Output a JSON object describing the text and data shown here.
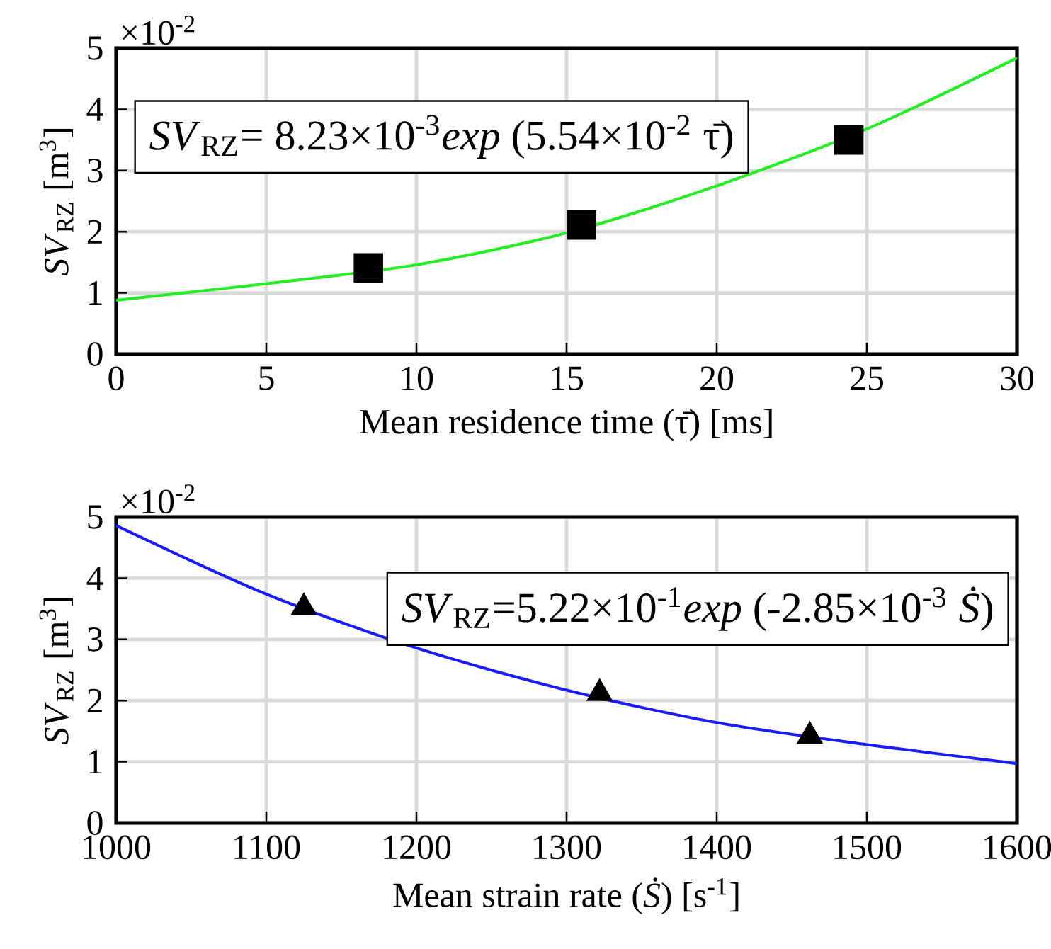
{
  "chart_data": [
    {
      "type": "scatter",
      "xlabel": "Mean residence time (τ̄) [ms]",
      "ylabel": "*SV*$_{RZ}$ [m$^{3}$]",
      "xlim": [
        0,
        30
      ],
      "xticks": [
        0,
        5,
        10,
        15,
        20,
        25,
        30
      ],
      "ylim": [
        0,
        5
      ],
      "yticks": [
        0,
        1,
        2,
        3,
        4,
        5
      ],
      "grid": true,
      "annotations": [
        "×10$^{-2}$",
        "*SV*$_{RZ}$= 8.23×10$^{-3}$*exp* (5.54×10$^{-2}$ τ̄)"
      ],
      "series": [
        {
          "marker": "square",
          "color": "#000000",
          "x": [
            8.4,
            15.5,
            24.4
          ],
          "values": [
            1.41,
            2.11,
            3.5
          ]
        },
        {
          "type": "line",
          "marker": "none",
          "color": "#22ee22",
          "x": [
            0,
            5,
            10,
            15,
            20,
            25,
            30
          ],
          "values": [
            0.88,
            1.15,
            1.46,
            1.98,
            2.75,
            3.68,
            4.84
          ]
        }
      ]
    },
    {
      "type": "scatter",
      "xlabel": "Mean strain rate (*Ṡ*) [s$^{-1}$]",
      "ylabel": "*SV*$_{RZ}$ [m$^{3}$]",
      "xlim": [
        1000,
        1600
      ],
      "xticks": [
        1000,
        1100,
        1200,
        1300,
        1400,
        1500,
        1600
      ],
      "ylim": [
        0,
        5
      ],
      "yticks": [
        0,
        1,
        2,
        3,
        4,
        5
      ],
      "grid": true,
      "annotations": [
        "×10$^{-2}$",
        "*SV*$_{RZ}$=5.22×10$^{-1}$*exp* (-2.85×10$^{-3}$ *Ṡ*)"
      ],
      "series": [
        {
          "marker": "triangle",
          "color": "#000000",
          "x": [
            1125,
            1322,
            1462
          ],
          "values": [
            3.52,
            2.12,
            1.42
          ]
        },
        {
          "type": "line",
          "marker": "none",
          "color": "#1a1aff",
          "x": [
            1000,
            1100,
            1200,
            1300,
            1400,
            1500,
            1600
          ],
          "values": [
            4.86,
            3.74,
            2.86,
            2.17,
            1.64,
            1.28,
            0.97
          ]
        }
      ]
    }
  ]
}
